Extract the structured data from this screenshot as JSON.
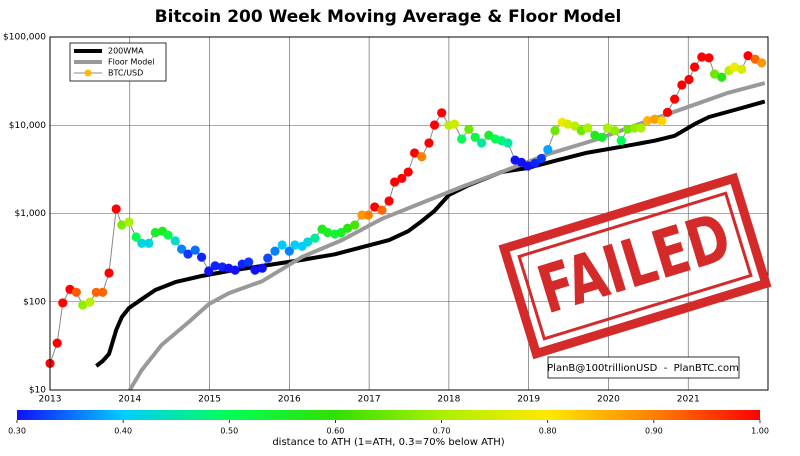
{
  "chart_data": {
    "type": "line",
    "title": "Bitcoin 200 Week Moving Average & Floor Model",
    "xlim": [
      2013,
      2022
    ],
    "xticks": [
      2013,
      2014,
      2015,
      2016,
      2017,
      2018,
      2019,
      2020,
      2021
    ],
    "ylim": [
      10,
      100000
    ],
    "log_y": true,
    "yticks": [
      {
        "value": 10,
        "label": "$10"
      },
      {
        "value": 100,
        "label": "$100"
      },
      {
        "value": 1000,
        "label": "$1,000"
      },
      {
        "value": 10000,
        "label": "$10,000"
      },
      {
        "value": 100000,
        "label": "$100,000"
      }
    ],
    "grid": true,
    "legend": "upper left",
    "series": [
      {
        "name": "200WMA",
        "color": "#000000",
        "linewidth": 4,
        "x": [
          2013.58,
          2013.66,
          2013.74,
          2013.83,
          2013.9,
          2013.99,
          2014.15,
          2014.32,
          2014.57,
          2014.9,
          2015.24,
          2015.73,
          2016.16,
          2016.57,
          2016.91,
          2017.25,
          2017.49,
          2017.66,
          2017.82,
          2018.0,
          2018.25,
          2018.66,
          2018.99,
          2019.33,
          2019.74,
          2020.16,
          2020.58,
          2020.83,
          2021.08,
          2021.26,
          2021.67,
          2021.96
        ],
        "values": [
          18.7,
          21.3,
          25.6,
          47.8,
          67,
          85,
          107,
          136,
          167,
          196,
          223,
          260,
          298,
          345,
          415,
          500,
          630,
          820,
          1070,
          1620,
          2100,
          2950,
          3280,
          3960,
          4900,
          5700,
          6680,
          7600,
          10300,
          12400,
          15700,
          18600
        ]
      },
      {
        "name": "Floor Model",
        "color": "#999999",
        "linewidth": 4,
        "x": [
          2014.0,
          2014.15,
          2014.4,
          2014.74,
          2014.99,
          2015.24,
          2015.66,
          2016.16,
          2016.66,
          2017.16,
          2017.66,
          2018.16,
          2018.66,
          2019.24,
          2019.83,
          2020.42,
          2020.99,
          2021.5,
          2021.96
        ],
        "values": [
          10,
          16.8,
          32.4,
          59,
          94,
          125,
          171,
          322,
          500,
          870,
          1320,
          2000,
          2950,
          4700,
          6800,
          10600,
          16000,
          23300,
          30000
        ]
      },
      {
        "name": "BTC/USD",
        "color": "#888888",
        "linewidth": 1,
        "marker_color": "#ffbb00",
        "x": [
          2013.0,
          2013.09,
          2013.16,
          2013.25,
          2013.33,
          2013.41,
          2013.5,
          2013.58,
          2013.66,
          2013.74,
          2013.83,
          2013.9,
          2013.99,
          2014.08,
          2014.15,
          2014.24,
          2014.32,
          2014.41,
          2014.48,
          2014.57,
          2014.65,
          2014.73,
          2014.82,
          2014.9,
          2014.99,
          2015.07,
          2015.16,
          2015.24,
          2015.32,
          2015.41,
          2015.49,
          2015.57,
          2015.66,
          2015.73,
          2015.82,
          2015.91,
          2016.0,
          2016.07,
          2016.16,
          2016.23,
          2016.32,
          2016.41,
          2016.48,
          2016.57,
          2016.65,
          2016.73,
          2016.82,
          2016.91,
          2016.99,
          2017.07,
          2017.16,
          2017.25,
          2017.32,
          2017.41,
          2017.49,
          2017.57,
          2017.66,
          2017.75,
          2017.82,
          2017.91,
          2018.0,
          2018.07,
          2018.16,
          2018.25,
          2018.33,
          2018.41,
          2018.5,
          2018.58,
          2018.66,
          2018.74,
          2018.83,
          2018.91,
          2018.99,
          2019.08,
          2019.16,
          2019.24,
          2019.33,
          2019.42,
          2019.49,
          2019.58,
          2019.66,
          2019.74,
          2019.83,
          2019.92,
          2019.99,
          2020.08,
          2020.16,
          2020.24,
          2020.33,
          2020.41,
          2020.49,
          2020.58,
          2020.67,
          2020.74,
          2020.83,
          2020.92,
          2021.01,
          2021.08,
          2021.17,
          2021.26,
          2021.33,
          2021.42,
          2021.51,
          2021.58,
          2021.67,
          2021.75,
          2021.84,
          2021.92
        ],
        "values": [
          20,
          34,
          97,
          138,
          128,
          92,
          99,
          128,
          128,
          212,
          1125,
          741,
          800,
          542,
          460,
          460,
          610,
          630,
          570,
          490,
          395,
          347,
          385,
          320,
          223,
          255,
          248,
          240,
          228,
          267,
          282,
          228,
          240,
          312,
          375,
          440,
          375,
          440,
          425,
          475,
          525,
          665,
          610,
          585,
          610,
          680,
          741,
          960,
          960,
          1185,
          1090,
          1385,
          2275,
          2500,
          2950,
          4850,
          4400,
          6300,
          10070,
          13800,
          10000,
          10300,
          6980,
          9000,
          7300,
          6300,
          7700,
          7000,
          6700,
          6300,
          4030,
          3800,
          3450,
          3700,
          4200,
          5300,
          8700,
          10800,
          10300,
          9800,
          8700,
          9300,
          7700,
          7300,
          9300,
          8700,
          6700,
          9000,
          9300,
          9300,
          11300,
          11700,
          11200,
          14000,
          19800,
          28600,
          33000,
          45700,
          59300,
          58000,
          38000,
          35000,
          41700,
          45700,
          43000,
          61400,
          56000,
          51000
        ],
        "color_values": [
          1,
          1,
          1,
          1,
          0.93,
          0.68,
          0.72,
          0.92,
          0.92,
          1,
          1,
          0.66,
          0.7,
          0.5,
          0.42,
          0.42,
          0.55,
          0.56,
          0.52,
          0.43,
          0.36,
          0.32,
          0.35,
          0.31,
          0.3,
          0.31,
          0.31,
          0.3,
          0.3,
          0.31,
          0.32,
          0.3,
          0.3,
          0.33,
          0.36,
          0.4,
          0.36,
          0.4,
          0.4,
          0.42,
          0.46,
          0.57,
          0.55,
          0.54,
          0.55,
          0.58,
          0.62,
          0.88,
          0.9,
          1,
          0.92,
          1,
          1,
          1,
          1,
          1,
          0.9,
          1,
          1,
          1,
          0.72,
          0.74,
          0.5,
          0.65,
          0.52,
          0.46,
          0.55,
          0.5,
          0.48,
          0.46,
          0.3,
          0.3,
          0.3,
          0.31,
          0.32,
          0.38,
          0.65,
          0.78,
          0.75,
          0.72,
          0.65,
          0.7,
          0.57,
          0.55,
          0.7,
          0.68,
          0.5,
          0.65,
          0.68,
          0.7,
          0.85,
          0.87,
          0.82,
          1,
          1,
          1,
          1,
          1,
          1,
          1,
          0.65,
          0.58,
          0.72,
          0.78,
          0.75,
          1,
          0.92,
          0.88
        ]
      }
    ],
    "colorbar": {
      "label": "distance to ATH (1=ATH, 0.3=70% below ATH)",
      "lim": [
        0.3,
        1.0
      ],
      "ticks": [
        {
          "value": 0.3,
          "label": "0.30"
        },
        {
          "value": 0.4,
          "label": "0.40"
        },
        {
          "value": 0.5,
          "label": "0.50"
        },
        {
          "value": 0.6,
          "label": "0.60"
        },
        {
          "value": 0.7,
          "label": "0.70"
        },
        {
          "value": 0.8,
          "label": "0.80"
        },
        {
          "value": 0.9,
          "label": "0.90"
        },
        {
          "value": 1.0,
          "label": "1.00"
        }
      ],
      "colormap": [
        "#1010ff",
        "#00ccff",
        "#00ff55",
        "#30e000",
        "#aaf000",
        "#ffe800",
        "#ff8000",
        "#ff0000"
      ]
    },
    "annotation": "PlanB@100trillionUSD  -  PlanBTC.com",
    "stamp": "FAILED"
  }
}
